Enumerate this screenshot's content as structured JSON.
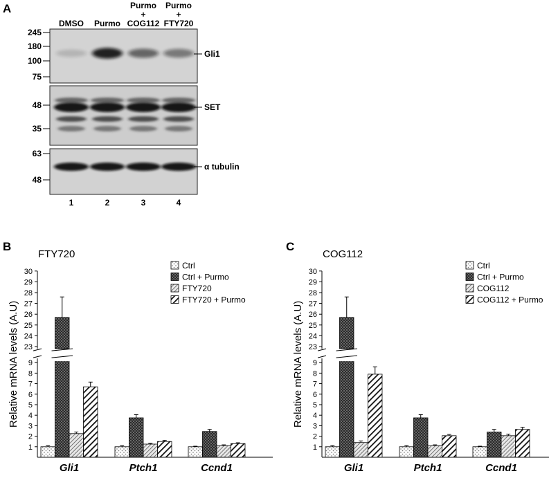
{
  "panel_a": {
    "label": "A",
    "lanes": [
      {
        "header": [
          "DMSO"
        ],
        "number": "1"
      },
      {
        "header": [
          "Purmo"
        ],
        "number": "2"
      },
      {
        "header": [
          "Purmo",
          "+",
          "COG112"
        ],
        "number": "3"
      },
      {
        "header": [
          "Purmo",
          "+",
          "FTY720"
        ],
        "number": "4"
      }
    ],
    "blots": [
      {
        "name": "Gli1",
        "markers": [
          "245",
          "180",
          "100",
          "75"
        ],
        "intensity": [
          0.15,
          0.9,
          0.55,
          0.45
        ]
      },
      {
        "name": "SET",
        "markers": [
          "48",
          "35"
        ],
        "intensity": [
          1,
          1,
          1,
          1
        ]
      },
      {
        "name": "α tubulin",
        "markers": [
          "63",
          "48"
        ],
        "intensity": [
          1,
          1,
          1,
          1
        ]
      }
    ]
  },
  "chart_data": [
    {
      "type": "bar",
      "panel": "B",
      "title": "FTY720",
      "ylabel": "Relative mRNA levels (A.U)",
      "categories": [
        "Gli1",
        "Ptch1",
        "Ccnd1"
      ],
      "y_ticks_low": [
        "1",
        "2",
        "3",
        "4",
        "5",
        "6",
        "7",
        "8",
        "9"
      ],
      "y_ticks_high": [
        "23",
        "24",
        "25",
        "26",
        "27",
        "28",
        "29",
        "30"
      ],
      "axis_break": [
        9.4,
        22.8
      ],
      "ylim": [
        0,
        30
      ],
      "series": [
        {
          "name": "Ctrl",
          "pattern": "dots",
          "values": [
            1.0,
            1.0,
            1.0
          ],
          "errors": [
            0.1,
            0.1,
            0.05
          ]
        },
        {
          "name": "Ctrl + Purmo",
          "pattern": "dark",
          "values": [
            25.7,
            3.75,
            2.45
          ],
          "errors": [
            1.9,
            0.3,
            0.2
          ]
        },
        {
          "name": "FTY720",
          "pattern": "hatch-light",
          "values": [
            2.25,
            1.25,
            1.1
          ],
          "errors": [
            0.15,
            0.07,
            0.08
          ]
        },
        {
          "name": "FTY720 + Purmo",
          "pattern": "hatch-bold",
          "values": [
            6.7,
            1.5,
            1.3
          ],
          "errors": [
            0.45,
            0.1,
            0.08
          ]
        }
      ]
    },
    {
      "type": "bar",
      "panel": "C",
      "title": "COG112",
      "ylabel": "Relative mRNA levels (A.U)",
      "categories": [
        "Gli1",
        "Ptch1",
        "Ccnd1"
      ],
      "y_ticks_low": [
        "1",
        "2",
        "3",
        "4",
        "5",
        "6",
        "7",
        "8",
        "9"
      ],
      "y_ticks_high": [
        "23",
        "24",
        "25",
        "26",
        "27",
        "28",
        "29",
        "30"
      ],
      "axis_break": [
        9.4,
        22.8
      ],
      "ylim": [
        0,
        30
      ],
      "series": [
        {
          "name": "Ctrl",
          "pattern": "dots",
          "values": [
            1.0,
            1.0,
            1.0
          ],
          "errors": [
            0.1,
            0.1,
            0.05
          ]
        },
        {
          "name": "Ctrl + Purmo",
          "pattern": "dark",
          "values": [
            25.7,
            3.75,
            2.4
          ],
          "errors": [
            1.9,
            0.3,
            0.25
          ]
        },
        {
          "name": "COG112",
          "pattern": "hatch-light",
          "values": [
            1.4,
            1.1,
            2.05
          ],
          "errors": [
            0.15,
            0.08,
            0.15
          ]
        },
        {
          "name": "COG112 + Purmo",
          "pattern": "hatch-bold",
          "values": [
            7.9,
            2.05,
            2.65
          ],
          "errors": [
            0.7,
            0.12,
            0.2
          ]
        }
      ]
    }
  ]
}
